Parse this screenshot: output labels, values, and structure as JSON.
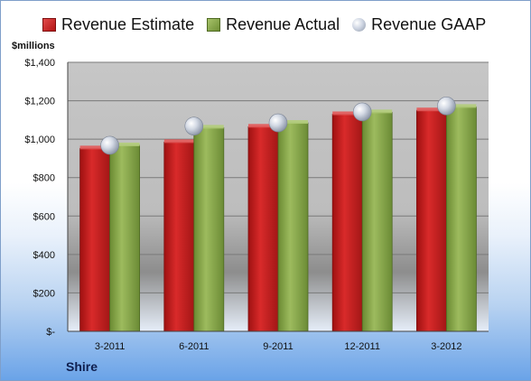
{
  "legend": {
    "estimate": "Revenue Estimate",
    "actual": "Revenue Actual",
    "gaap": "Revenue GAAP"
  },
  "unit_label": "$millions",
  "company": "Shire",
  "colors": {
    "estimate": "#c81e1e",
    "actual": "#86a64a",
    "gaap": "#c9d0dc"
  },
  "chart_data": {
    "type": "bar",
    "categories": [
      "3-2011",
      "6-2011",
      "9-2011",
      "12-2011",
      "3-2012"
    ],
    "series": [
      {
        "name": "Revenue Estimate",
        "values": [
          952,
          985,
          1065,
          1130,
          1150
        ]
      },
      {
        "name": "Revenue Actual",
        "values": [
          968,
          1060,
          1085,
          1140,
          1168
        ]
      },
      {
        "name": "Revenue GAAP",
        "values": [
          968,
          1068,
          1085,
          1142,
          1173
        ],
        "marker": "sphere"
      }
    ],
    "ylim": [
      0,
      1400
    ],
    "yticks": [
      0,
      200,
      400,
      600,
      800,
      1000,
      1200,
      1400
    ],
    "ytick_labels": [
      "$-",
      "$200",
      "$400",
      "$600",
      "$800",
      "$1,000",
      "$1,200",
      "$1,400"
    ],
    "grid": true,
    "legend_position": "top"
  }
}
